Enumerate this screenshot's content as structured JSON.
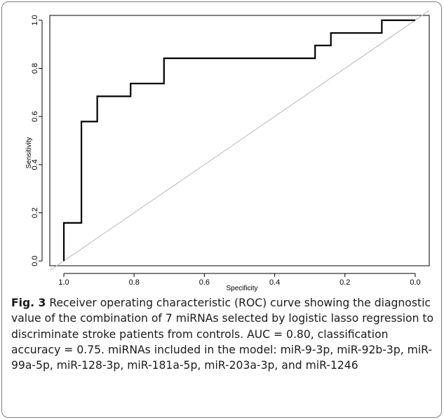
{
  "chart_data": {
    "type": "line",
    "title": "",
    "xlabel": "Specificity",
    "ylabel": "Sensitivity",
    "x_reversed": true,
    "xlim": [
      1.04,
      -0.04
    ],
    "ylim": [
      -0.02,
      1.02
    ],
    "x_ticks": [
      1.0,
      0.8,
      0.6,
      0.4,
      0.2,
      0.0
    ],
    "x_tick_labels": [
      "1.0",
      "0.8",
      "0.6",
      "0.4",
      "0.2",
      "0.0"
    ],
    "y_ticks": [
      0.0,
      0.2,
      0.4,
      0.6,
      0.8,
      1.0
    ],
    "y_tick_labels": [
      "0.0",
      "0.2",
      "0.4",
      "0.6",
      "0.8",
      "1.0"
    ],
    "grid": false,
    "legend": "none",
    "series": [
      {
        "role": "roc-curve",
        "color": "#000000",
        "x": [
          1.0,
          1.0,
          0.95,
          0.95,
          0.905,
          0.905,
          0.81,
          0.81,
          0.715,
          0.715,
          0.285,
          0.285,
          0.24,
          0.24,
          0.095,
          0.095,
          0.0
        ],
        "y": [
          0.0,
          0.158,
          0.158,
          0.579,
          0.579,
          0.684,
          0.684,
          0.737,
          0.737,
          0.842,
          0.842,
          0.895,
          0.895,
          0.947,
          0.947,
          1.0,
          1.0
        ]
      },
      {
        "role": "reference-diagonal",
        "color": "#bdbdbd",
        "x": [
          1.04,
          -0.04
        ],
        "y": [
          -0.04,
          1.04
        ]
      }
    ]
  },
  "caption": {
    "label": "Fig. 3",
    "text": " Receiver operating characteristic (ROC) curve showing the diagnostic value of the combination of 7 miRNAs selected by logistic lasso regression to discriminate stroke patients from controls. AUC = 0.80, classification accuracy = 0.75. miRNAs included in the model: miR-9-3p, miR-92b-3p, miR-99a-5p, miR-128-3p, miR-181a-5p, miR-203a-3p, and miR-1246"
  }
}
